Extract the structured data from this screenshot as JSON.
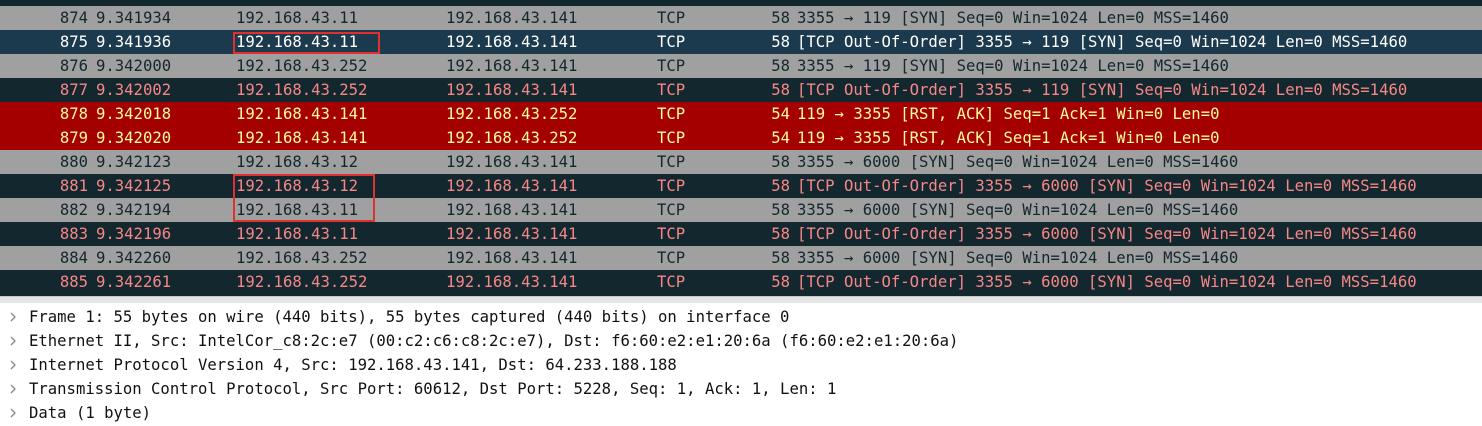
{
  "packets": [
    {
      "no": "874",
      "time": "9.341934",
      "source": "192.168.43.11",
      "destination": "192.168.43.141",
      "protocol": "TCP",
      "length": "58",
      "info": "3355 → 119 [SYN] Seq=0 Win=1024 Len=0 MSS=1460"
    },
    {
      "no": "875",
      "time": "9.341936",
      "source": "192.168.43.11",
      "destination": "192.168.43.141",
      "protocol": "TCP",
      "length": "58",
      "info": "[TCP Out-Of-Order] 3355 → 119 [SYN] Seq=0 Win=1024 Len=0 MSS=1460"
    },
    {
      "no": "876",
      "time": "9.342000",
      "source": "192.168.43.252",
      "destination": "192.168.43.141",
      "protocol": "TCP",
      "length": "58",
      "info": "3355 → 119 [SYN] Seq=0 Win=1024 Len=0 MSS=1460"
    },
    {
      "no": "877",
      "time": "9.342002",
      "source": "192.168.43.252",
      "destination": "192.168.43.141",
      "protocol": "TCP",
      "length": "58",
      "info": "[TCP Out-Of-Order] 3355 → 119 [SYN] Seq=0 Win=1024 Len=0 MSS=1460"
    },
    {
      "no": "878",
      "time": "9.342018",
      "source": "192.168.43.141",
      "destination": "192.168.43.252",
      "protocol": "TCP",
      "length": "54",
      "info": "119 → 3355 [RST, ACK] Seq=1 Ack=1 Win=0 Len=0"
    },
    {
      "no": "879",
      "time": "9.342020",
      "source": "192.168.43.141",
      "destination": "192.168.43.252",
      "protocol": "TCP",
      "length": "54",
      "info": "119 → 3355 [RST, ACK] Seq=1 Ack=1 Win=0 Len=0"
    },
    {
      "no": "880",
      "time": "9.342123",
      "source": "192.168.43.12",
      "destination": "192.168.43.141",
      "protocol": "TCP",
      "length": "58",
      "info": "3355 → 6000 [SYN] Seq=0 Win=1024 Len=0 MSS=1460"
    },
    {
      "no": "881",
      "time": "9.342125",
      "source": "192.168.43.12",
      "destination": "192.168.43.141",
      "protocol": "TCP",
      "length": "58",
      "info": "[TCP Out-Of-Order] 3355 → 6000 [SYN] Seq=0 Win=1024 Len=0 MSS=1460"
    },
    {
      "no": "882",
      "time": "9.342194",
      "source": "192.168.43.11",
      "destination": "192.168.43.141",
      "protocol": "TCP",
      "length": "58",
      "info": "3355 → 6000 [SYN] Seq=0 Win=1024 Len=0 MSS=1460"
    },
    {
      "no": "883",
      "time": "9.342196",
      "source": "192.168.43.11",
      "destination": "192.168.43.141",
      "protocol": "TCP",
      "length": "58",
      "info": "[TCP Out-Of-Order] 3355 → 6000 [SYN] Seq=0 Win=1024 Len=0 MSS=1460"
    },
    {
      "no": "884",
      "time": "9.342260",
      "source": "192.168.43.252",
      "destination": "192.168.43.141",
      "protocol": "TCP",
      "length": "58",
      "info": "3355 → 6000 [SYN] Seq=0 Win=1024 Len=0 MSS=1460"
    },
    {
      "no": "885",
      "time": "9.342261",
      "source": "192.168.43.252",
      "destination": "192.168.43.141",
      "protocol": "TCP",
      "length": "58",
      "info": "[TCP Out-Of-Order] 3355 → 6000 [SYN] Seq=0 Win=1024 Len=0 MSS=1460"
    }
  ],
  "details": [
    "Frame 1: 55 bytes on wire (440 bits), 55 bytes captured (440 bits) on interface 0",
    "Ethernet II, Src: IntelCor_c8:2c:e7 (00:c2:c6:c8:2c:e7), Dst: f6:60:e2:e1:20:6a (f6:60:e2:e1:20:6a)",
    "Internet Protocol Version 4, Src: 192.168.43.141, Dst: 64.233.188.188",
    "Transmission Control Protocol, Src Port: 60612, Dst Port: 5228, Seq: 1, Ack: 1, Len: 1",
    "Data (1 byte)"
  ]
}
